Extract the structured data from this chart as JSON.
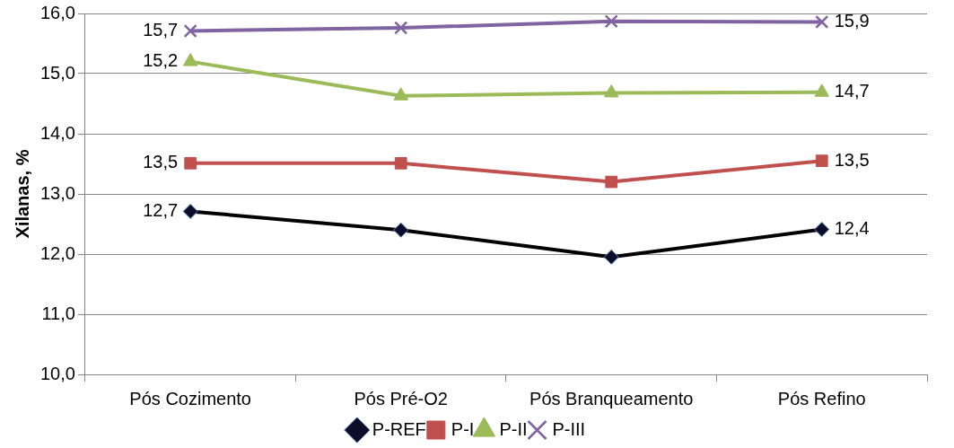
{
  "chart_data": {
    "type": "line",
    "ylabel": "Xilanas, %",
    "categories": [
      "Pós Cozimento",
      "Pós Pré-O2",
      "Pós Branqueamento",
      "Pós Refino"
    ],
    "series": [
      {
        "name": "P-REF",
        "color": "#000000",
        "marker": "diamond",
        "values": [
          12.71,
          12.4,
          11.95,
          12.41
        ],
        "value_labels": [
          "12,7",
          null,
          null,
          "12,4"
        ]
      },
      {
        "name": "P-I",
        "color": "#c0504d",
        "marker": "square",
        "values": [
          13.51,
          13.51,
          13.2,
          13.55
        ],
        "value_labels": [
          "13,5",
          null,
          null,
          "13,5"
        ]
      },
      {
        "name": "P-II",
        "color": "#9bbb59",
        "marker": "triangle",
        "values": [
          15.2,
          14.63,
          14.68,
          14.69
        ],
        "value_labels": [
          "15,2",
          null,
          null,
          "14,7"
        ]
      },
      {
        "name": "P-III",
        "color": "#8064a2",
        "marker": "cross",
        "values": [
          15.71,
          15.76,
          15.87,
          15.86
        ],
        "value_labels": [
          "15,7",
          null,
          null,
          "15,9"
        ]
      }
    ],
    "ylim": [
      10,
      16
    ],
    "yticks": [
      {
        "value": 10,
        "label": "10,0"
      },
      {
        "value": 11,
        "label": "11,0"
      },
      {
        "value": 12,
        "label": "12,0"
      },
      {
        "value": 13,
        "label": "13,0"
      },
      {
        "value": 14,
        "label": "14,0"
      },
      {
        "value": 15,
        "label": "15,0"
      },
      {
        "value": 16,
        "label": "16,0"
      }
    ],
    "grid": "y",
    "legend": "bottom"
  }
}
